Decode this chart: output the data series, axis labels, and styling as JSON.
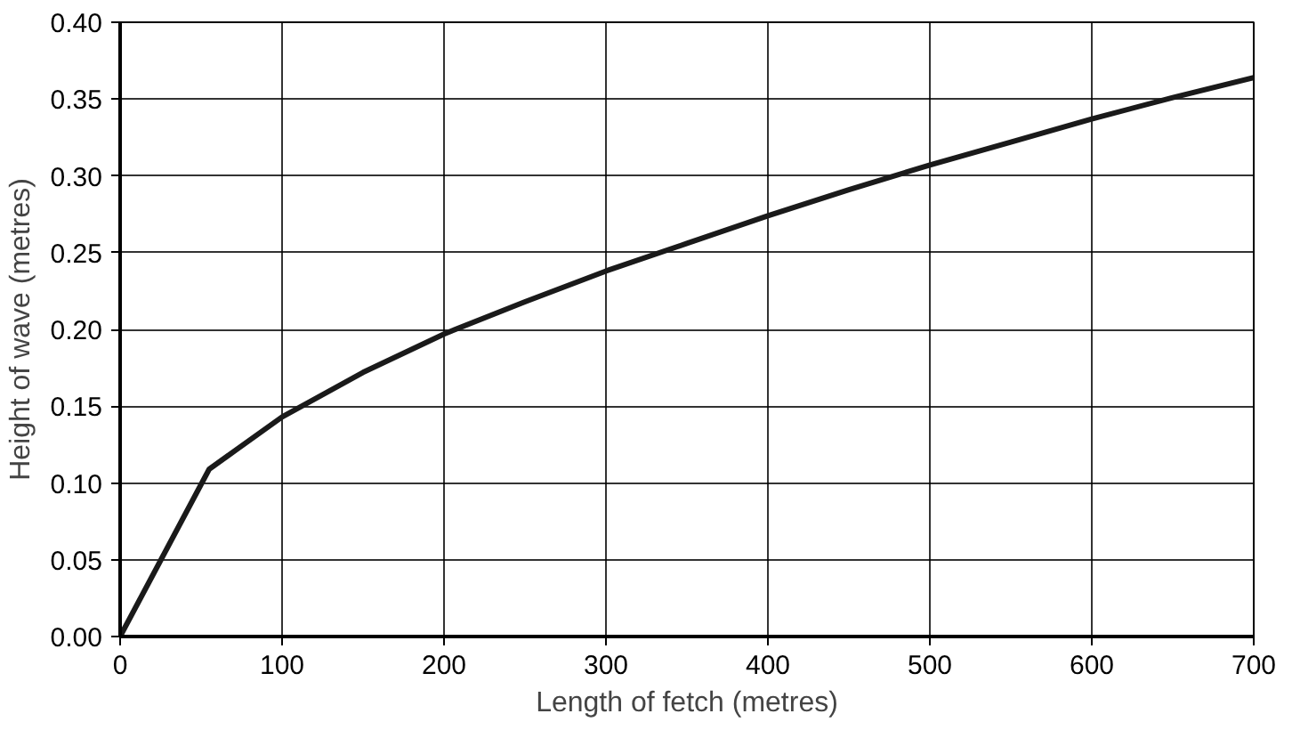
{
  "chart_data": {
    "type": "line",
    "xlabel": "Length of fetch (metres)",
    "ylabel": "Height of wave (metres)",
    "x": [
      0,
      55,
      100,
      150,
      200,
      250,
      300,
      350,
      400,
      450,
      500,
      550,
      600,
      650,
      700
    ],
    "series": [
      {
        "color": "#1a1a1a",
        "values": [
          0,
          0.109,
          0.143,
          0.172,
          0.197,
          0.218,
          0.238,
          0.256,
          0.274,
          0.291,
          0.307,
          0.322,
          0.337,
          0.351,
          0.364
        ]
      }
    ],
    "xlim": [
      0,
      700
    ],
    "ylim": [
      0,
      0.4
    ],
    "xticks": [
      0,
      100,
      200,
      300,
      400,
      500,
      600,
      700
    ],
    "yticks": [
      {
        "value": 0,
        "label": "0.00"
      },
      0.05,
      {
        "value": 0.1,
        "label": "0.10"
      },
      0.15,
      {
        "value": 0.2,
        "label": "0.20"
      },
      0.25,
      {
        "value": 0.3,
        "label": "0.30"
      },
      0.35,
      {
        "value": 0.4,
        "label": "0.40"
      }
    ],
    "grid": true,
    "marker": "none",
    "line_style": "solid"
  }
}
